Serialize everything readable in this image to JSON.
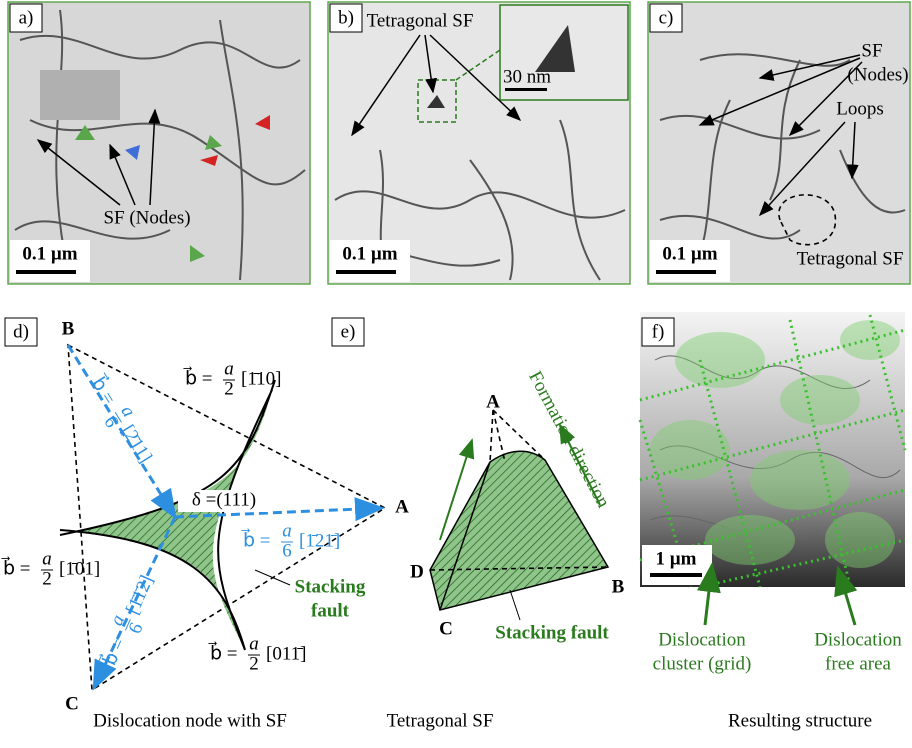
{
  "panels": {
    "a": {
      "label": "a)",
      "annotation": "SF (Nodes)",
      "scale": "0.1 µm"
    },
    "b": {
      "label": "b)",
      "annotation": "Tetragonal SF",
      "inset_scale": "30 nm",
      "scale": "0.1 µm"
    },
    "c": {
      "label": "c)",
      "annotation_lines": [
        "SF",
        "(Nodes)"
      ],
      "loops": "Loops",
      "tetragonal": "Tetragonal SF",
      "scale": "0.1 µm"
    },
    "d": {
      "label": "d)",
      "vertices": [
        "B",
        "A",
        "C"
      ],
      "delta": "δ =(111)",
      "fault_lines": [
        "Stacking",
        "fault"
      ],
      "vectors": [
        {
          "prefix": "b⃗ =",
          "numerator": "a",
          "denominator": "2",
          "direction": "[1̄10]"
        },
        {
          "prefix": "b⃗ =",
          "numerator": "a",
          "denominator": "2",
          "direction": "[1̄01]"
        },
        {
          "prefix": "b⃗ =",
          "numerator": "a",
          "denominator": "2",
          "direction": "[011̄]"
        },
        {
          "prefix": "b⃗ =",
          "numerator": "a",
          "denominator": "6",
          "direction": "[2̄11]"
        },
        {
          "prefix": "b⃗ =",
          "numerator": "a",
          "denominator": "6",
          "direction": "[1̄21̄]"
        },
        {
          "prefix": "b⃗ =",
          "numerator": "a",
          "denominator": "6",
          "direction": "[1̄1̄2]"
        }
      ],
      "caption": "Dislocation node with SF"
    },
    "e": {
      "label": "e)",
      "vertices": [
        "A",
        "B",
        "C",
        "D"
      ],
      "direction": "Formation direction",
      "fault": "Stacking fault",
      "caption": "Tetragonal SF"
    },
    "f": {
      "label": "f)",
      "scale": "1 µm",
      "cluster_lines": [
        "Dislocation",
        "cluster (grid)"
      ],
      "free_lines": [
        "Dislocation",
        "free area"
      ],
      "caption": "Resulting structure"
    }
  }
}
